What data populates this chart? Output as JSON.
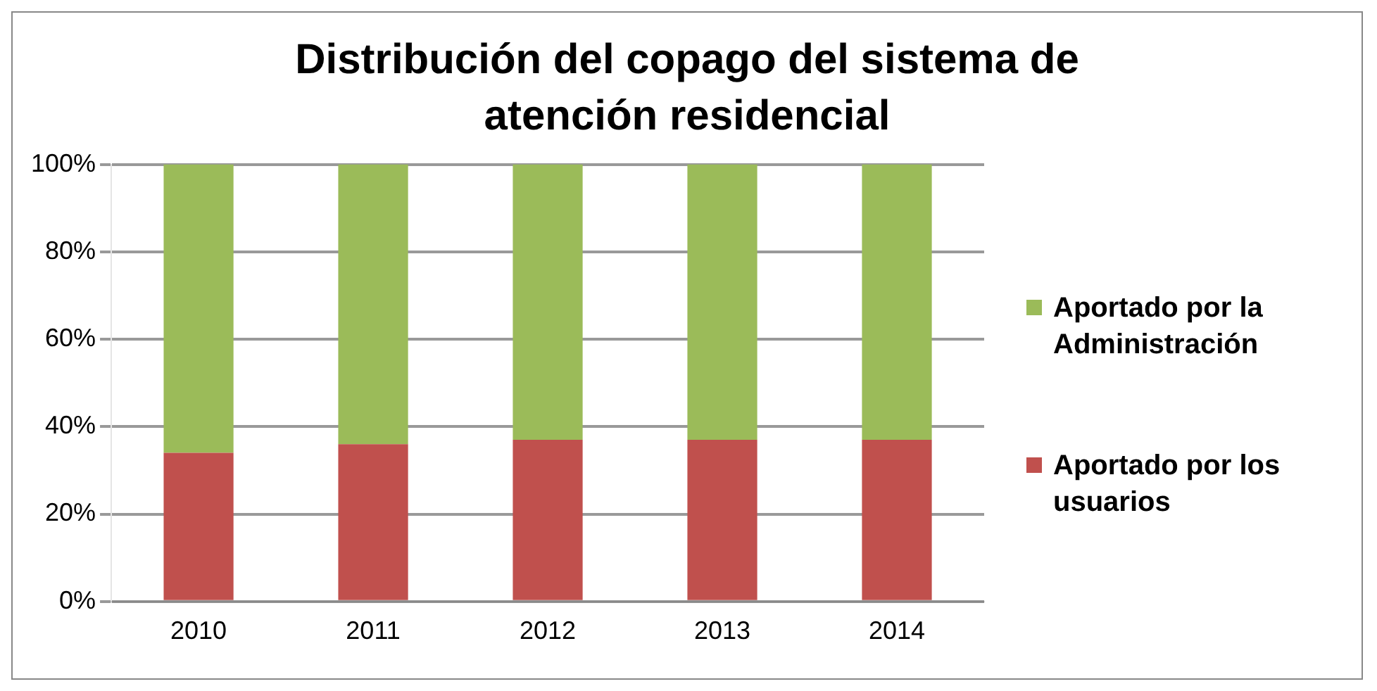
{
  "chart_data": {
    "type": "bar",
    "title": "Distribución del copago del sistema de atención residencial",
    "categories": [
      "2010",
      "2011",
      "2012",
      "2013",
      "2014"
    ],
    "stacked": true,
    "series": [
      {
        "name": "Aportado por los usuarios",
        "color": "#c0504d",
        "values": [
          34,
          36,
          37,
          37,
          37
        ]
      },
      {
        "name": "Aportado por la Administración",
        "color": "#9bbb59",
        "values": [
          66,
          64,
          63,
          63,
          63
        ]
      }
    ],
    "ylim": [
      0,
      100
    ],
    "yticks": [
      {
        "value": 0,
        "label": "0%"
      },
      {
        "value": 20,
        "label": "20%"
      },
      {
        "value": 40,
        "label": "40%"
      },
      {
        "value": 60,
        "label": "60%"
      },
      {
        "value": 80,
        "label": "80%"
      },
      {
        "value": 100,
        "label": "100%"
      }
    ],
    "grid": "y",
    "legend": "right"
  }
}
